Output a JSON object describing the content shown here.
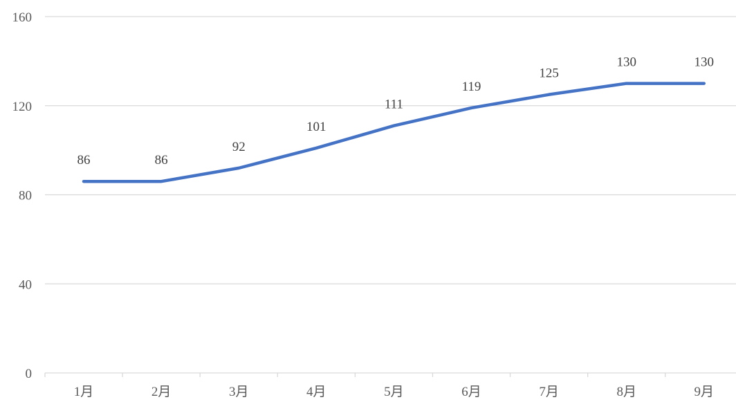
{
  "chart_data": {
    "type": "line",
    "title": "",
    "xlabel": "",
    "ylabel": "",
    "categories": [
      "1月",
      "2月",
      "3月",
      "4月",
      "5月",
      "6月",
      "7月",
      "8月",
      "9月"
    ],
    "series": [
      {
        "values": [
          86,
          86,
          92,
          101,
          111,
          119,
          125,
          130,
          130
        ],
        "color": "#4472c4"
      }
    ],
    "ylim": [
      0,
      160
    ],
    "yticks": [
      0,
      40,
      80,
      120,
      160
    ],
    "grid": true,
    "data_labels": true,
    "legend": "none"
  }
}
